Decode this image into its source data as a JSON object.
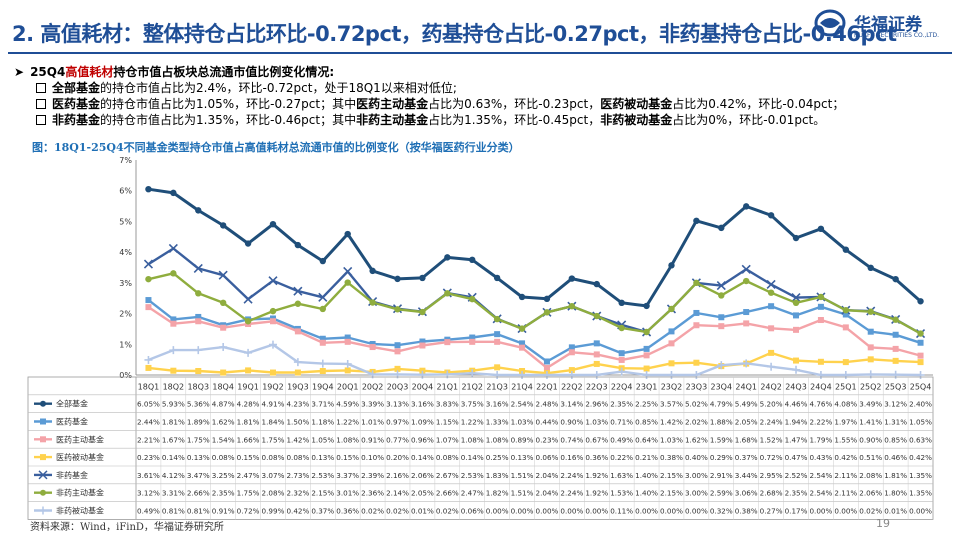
{
  "header": {
    "title": "2. 高值耗材：整体持仓占比环比-0.72pct，药基持仓占比-0.27pct，非药基持仓占比-0.46pct",
    "logo_text": "华福证券",
    "logo_subtext": "HUAFU SECURITIES CO.,LTD."
  },
  "bullets": {
    "main": {
      "prefix": "25Q4",
      "highlight": "高值耗材",
      "suffix": "持仓市值占板块总流通市值比例变化情况:"
    },
    "items": [
      {
        "b1": "全部基金",
        "t1": "的持仓市值占比为2.4%，环比-0.72pct，处于18Q1以来相对低位;"
      },
      {
        "b1": "医药基金",
        "t1": "的持仓市值占比为1.05%，环比-0.27pct；其中",
        "b2": "医药主动基金",
        "t2": "占比为0.63%，环比-0.23pct，",
        "b3": "医药被动基金",
        "t3": "占比为0.42%，环比-0.04pct；"
      },
      {
        "b1": "非药基金",
        "t1": "的持仓市值占比为1.35%，环比-0.46pct；其中",
        "b2": "非药主动基金",
        "t2": "占比为1.35%，环比-0.45pct，",
        "b3": "非药被动基金",
        "t3": "占比为0%，环比-0.01pct。"
      }
    ]
  },
  "colors": {
    "s0": "#1f4e79",
    "s1": "#5b9bd5",
    "s2": "#f4a3a8",
    "s3": "#ffd24d",
    "s4": "#3a5f9e",
    "s5": "#8fad3e",
    "s6": "#b4c7e7"
  },
  "chart_data": {
    "type": "line",
    "title": "图：18Q1-25Q4不同基金类型持仓市值占高值耗材总流通市值的比例变化（按华福医药行业分类）",
    "ylabel": "",
    "xlabel": "",
    "ylim": [
      0,
      7
    ],
    "yticks": [
      "0%",
      "1%",
      "2%",
      "3%",
      "4%",
      "5%",
      "6%",
      "7%"
    ],
    "categories": [
      "18Q1",
      "18Q2",
      "18Q3",
      "18Q4",
      "19Q1",
      "19Q2",
      "19Q3",
      "19Q4",
      "20Q1",
      "20Q2",
      "20Q3",
      "20Q4",
      "21Q1",
      "21Q2",
      "21Q3",
      "21Q4",
      "22Q1",
      "22Q2",
      "22Q3",
      "22Q4",
      "23Q1",
      "23Q2",
      "23Q3",
      "23Q4",
      "24Q1",
      "24Q2",
      "24Q3",
      "24Q4",
      "25Q1",
      "25Q2",
      "25Q3",
      "25Q4"
    ],
    "series": [
      {
        "name": "全部基金",
        "marker": "circle",
        "values": [
          6.05,
          5.93,
          5.36,
          4.87,
          4.28,
          4.91,
          4.23,
          3.71,
          4.59,
          3.39,
          3.13,
          3.16,
          3.83,
          3.75,
          3.16,
          2.54,
          2.48,
          3.14,
          2.96,
          2.35,
          2.25,
          3.57,
          5.02,
          4.79,
          5.49,
          5.2,
          4.46,
          4.76,
          4.08,
          3.49,
          3.12,
          2.4
        ],
        "labels": [
          "6.05%",
          "5.93%",
          "5.36%",
          "4.87%",
          "4.28%",
          "4.91%",
          "4.23%",
          "3.71%",
          "4.59%",
          "3.39%",
          "3.13%",
          "3.16%",
          "3.83%",
          "3.75%",
          "3.16%",
          "2.54%",
          "2.48%",
          "3.14%",
          "2.96%",
          "2.35%",
          "2.25%",
          "3.57%",
          "5.02%",
          "4.79%",
          "5.49%",
          "5.20%",
          "4.46%",
          "4.76%",
          "4.08%",
          "3.49%",
          "3.12%",
          "2.40%"
        ]
      },
      {
        "name": "医药基金",
        "marker": "square",
        "values": [
          2.44,
          1.81,
          1.89,
          1.62,
          1.81,
          1.84,
          1.5,
          1.18,
          1.22,
          1.01,
          0.97,
          1.09,
          1.15,
          1.22,
          1.33,
          1.03,
          0.44,
          0.9,
          1.03,
          0.71,
          0.85,
          1.42,
          2.02,
          1.88,
          2.05,
          2.24,
          1.94,
          2.22,
          1.97,
          1.41,
          1.31,
          1.05
        ],
        "labels": [
          "2.44%",
          "1.81%",
          "1.89%",
          "1.62%",
          "1.81%",
          "1.84%",
          "1.50%",
          "1.18%",
          "1.22%",
          "1.01%",
          "0.97%",
          "1.09%",
          "1.15%",
          "1.22%",
          "1.33%",
          "1.03%",
          "0.44%",
          "0.90%",
          "1.03%",
          "0.71%",
          "0.85%",
          "1.42%",
          "2.02%",
          "1.88%",
          "2.05%",
          "2.24%",
          "1.94%",
          "2.22%",
          "1.97%",
          "1.41%",
          "1.31%",
          "1.05%"
        ]
      },
      {
        "name": "医药主动基金",
        "marker": "square",
        "values": [
          2.21,
          1.67,
          1.75,
          1.54,
          1.66,
          1.75,
          1.42,
          1.05,
          1.08,
          0.91,
          0.77,
          0.96,
          1.07,
          1.08,
          1.08,
          0.89,
          0.23,
          0.74,
          0.67,
          0.49,
          0.64,
          1.03,
          1.62,
          1.59,
          1.68,
          1.52,
          1.47,
          1.79,
          1.55,
          0.9,
          0.85,
          0.63
        ],
        "labels": [
          "2.21%",
          "1.67%",
          "1.75%",
          "1.54%",
          "1.66%",
          "1.75%",
          "1.42%",
          "1.05%",
          "1.08%",
          "0.91%",
          "0.77%",
          "0.96%",
          "1.07%",
          "1.08%",
          "1.08%",
          "0.89%",
          "0.23%",
          "0.74%",
          "0.67%",
          "0.49%",
          "0.64%",
          "1.03%",
          "1.62%",
          "1.59%",
          "1.68%",
          "1.52%",
          "1.47%",
          "1.79%",
          "1.55%",
          "0.90%",
          "0.85%",
          "0.63%"
        ]
      },
      {
        "name": "医药被动基金",
        "marker": "square",
        "values": [
          0.23,
          0.14,
          0.13,
          0.08,
          0.15,
          0.08,
          0.08,
          0.13,
          0.15,
          0.1,
          0.2,
          0.14,
          0.08,
          0.14,
          0.25,
          0.13,
          0.06,
          0.16,
          0.36,
          0.22,
          0.21,
          0.38,
          0.4,
          0.29,
          0.37,
          0.72,
          0.47,
          0.43,
          0.42,
          0.51,
          0.46,
          0.42
        ],
        "labels": [
          "0.23%",
          "0.14%",
          "0.13%",
          "0.08%",
          "0.15%",
          "0.08%",
          "0.08%",
          "0.13%",
          "0.15%",
          "0.10%",
          "0.20%",
          "0.14%",
          "0.08%",
          "0.14%",
          "0.25%",
          "0.13%",
          "0.06%",
          "0.16%",
          "0.36%",
          "0.22%",
          "0.21%",
          "0.38%",
          "0.40%",
          "0.29%",
          "0.37%",
          "0.72%",
          "0.47%",
          "0.43%",
          "0.42%",
          "0.51%",
          "0.46%",
          "0.42%"
        ]
      },
      {
        "name": "非药基金",
        "marker": "x",
        "values": [
          3.61,
          4.12,
          3.47,
          3.25,
          2.47,
          3.07,
          2.73,
          2.53,
          3.37,
          2.39,
          2.16,
          2.06,
          2.67,
          2.53,
          1.83,
          1.51,
          2.04,
          2.24,
          1.92,
          1.63,
          1.4,
          2.15,
          3.0,
          2.91,
          3.44,
          2.95,
          2.52,
          2.54,
          2.11,
          2.08,
          1.81,
          1.35
        ],
        "labels": [
          "3.61%",
          "4.12%",
          "3.47%",
          "3.25%",
          "2.47%",
          "3.07%",
          "2.73%",
          "2.53%",
          "3.37%",
          "2.39%",
          "2.16%",
          "2.06%",
          "2.67%",
          "2.53%",
          "1.83%",
          "1.51%",
          "2.04%",
          "2.24%",
          "1.92%",
          "1.63%",
          "1.40%",
          "2.15%",
          "3.00%",
          "2.91%",
          "3.44%",
          "2.95%",
          "2.52%",
          "2.54%",
          "2.11%",
          "2.08%",
          "1.81%",
          "1.35%"
        ]
      },
      {
        "name": "非药主动基金",
        "marker": "circle",
        "values": [
          3.12,
          3.31,
          2.66,
          2.35,
          1.75,
          2.08,
          2.32,
          2.15,
          3.01,
          2.36,
          2.14,
          2.05,
          2.66,
          2.47,
          1.82,
          1.51,
          2.04,
          2.24,
          1.92,
          1.53,
          1.4,
          2.15,
          3.0,
          2.59,
          3.06,
          2.68,
          2.35,
          2.54,
          2.11,
          2.06,
          1.8,
          1.35
        ],
        "labels": [
          "3.12%",
          "3.31%",
          "2.66%",
          "2.35%",
          "1.75%",
          "2.08%",
          "2.32%",
          "2.15%",
          "3.01%",
          "2.36%",
          "2.14%",
          "2.05%",
          "2.66%",
          "2.47%",
          "1.82%",
          "1.51%",
          "2.04%",
          "2.24%",
          "1.92%",
          "1.53%",
          "1.40%",
          "2.15%",
          "3.00%",
          "2.59%",
          "3.06%",
          "2.68%",
          "2.35%",
          "2.54%",
          "2.11%",
          "2.06%",
          "1.80%",
          "1.35%"
        ]
      },
      {
        "name": "非药被动基金",
        "marker": "plus",
        "values": [
          0.49,
          0.81,
          0.81,
          0.91,
          0.72,
          0.99,
          0.42,
          0.37,
          0.36,
          0.02,
          0.02,
          0.01,
          0.02,
          0.06,
          0.0,
          0.0,
          0.0,
          0.0,
          0.0,
          0.11,
          0.0,
          0.0,
          0.0,
          0.32,
          0.38,
          0.27,
          0.17,
          0.0,
          0.0,
          0.02,
          0.01,
          0.0
        ],
        "labels": [
          "0.49%",
          "0.81%",
          "0.81%",
          "0.91%",
          "0.72%",
          "0.99%",
          "0.42%",
          "0.37%",
          "0.36%",
          "0.02%",
          "0.02%",
          "0.01%",
          "0.02%",
          "0.06%",
          "0.00%",
          "0.00%",
          "0.00%",
          "0.00%",
          "0.00%",
          "0.11%",
          "0.00%",
          "0.00%",
          "0.00%",
          "0.32%",
          "0.38%",
          "0.27%",
          "0.17%",
          "0.00%",
          "0.00%",
          "0.02%",
          "0.01%",
          "0.00%"
        ]
      }
    ]
  },
  "footer": {
    "source": "资料来源：Wind，iFinD，华福证券研究所",
    "page_number": "19"
  }
}
